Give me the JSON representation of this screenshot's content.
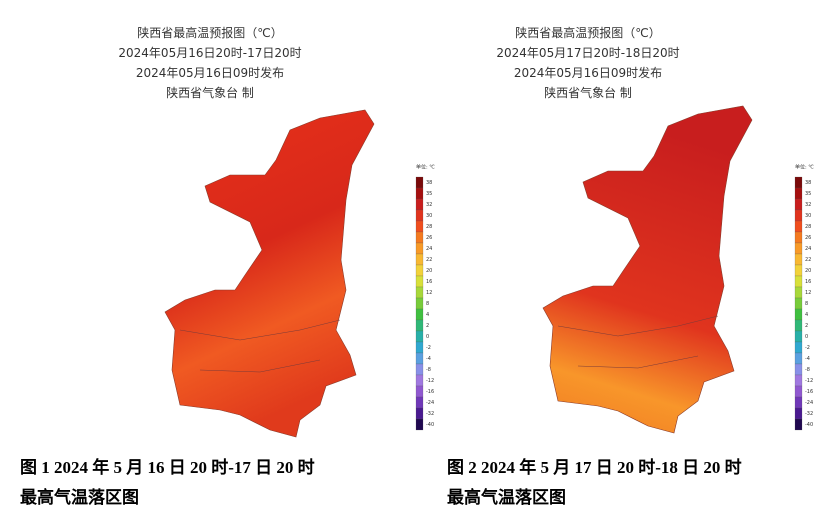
{
  "maps": [
    {
      "title": [
        "陕西省最高温预报图（℃）",
        "2024年05月16日20时-17日20时",
        "2024年05月16日09时发布",
        "陕西省气象台 制"
      ],
      "legend": {
        "unit": "单位: ℃",
        "levels": [
          38,
          35,
          32,
          30,
          28,
          26,
          24,
          22,
          20,
          16,
          12,
          8,
          4,
          2,
          0,
          -2,
          -4,
          -8,
          -12,
          -16,
          -24,
          -32,
          -40
        ]
      },
      "caption": [
        "图 1 2024 年 5 月 16 日 20 时-17 日 20 时",
        "最高气温落区图"
      ]
    },
    {
      "title": [
        "陕西省最高温预报图（℃）",
        "2024年05月17日20时-18日20时",
        "2024年05月16日09时发布",
        "陕西省气象台 制"
      ],
      "legend": {
        "unit": "单位: ℃",
        "levels": [
          38,
          35,
          32,
          30,
          28,
          26,
          24,
          22,
          20,
          16,
          12,
          8,
          4,
          2,
          0,
          -2,
          -4,
          -8,
          -12,
          -16,
          -24,
          -32,
          -40
        ]
      },
      "caption": [
        "图 2 2024 年 5 月 17 日 20 时-18 日 20 时",
        "最高气温落区图"
      ]
    }
  ],
  "legend_colors": [
    "#7a0a0a",
    "#a51010",
    "#c81e1e",
    "#e0341e",
    "#f04e1e",
    "#f47a20",
    "#f89a28",
    "#f8b832",
    "#f2d23a",
    "#d8e03a",
    "#a8d83a",
    "#78cc3a",
    "#40c040",
    "#30b878",
    "#28b0a8",
    "#30a8d0",
    "#5aa0e0",
    "#8890e8",
    "#a078e0",
    "#9058d0",
    "#7038b8",
    "#4a1a90",
    "#200850"
  ]
}
